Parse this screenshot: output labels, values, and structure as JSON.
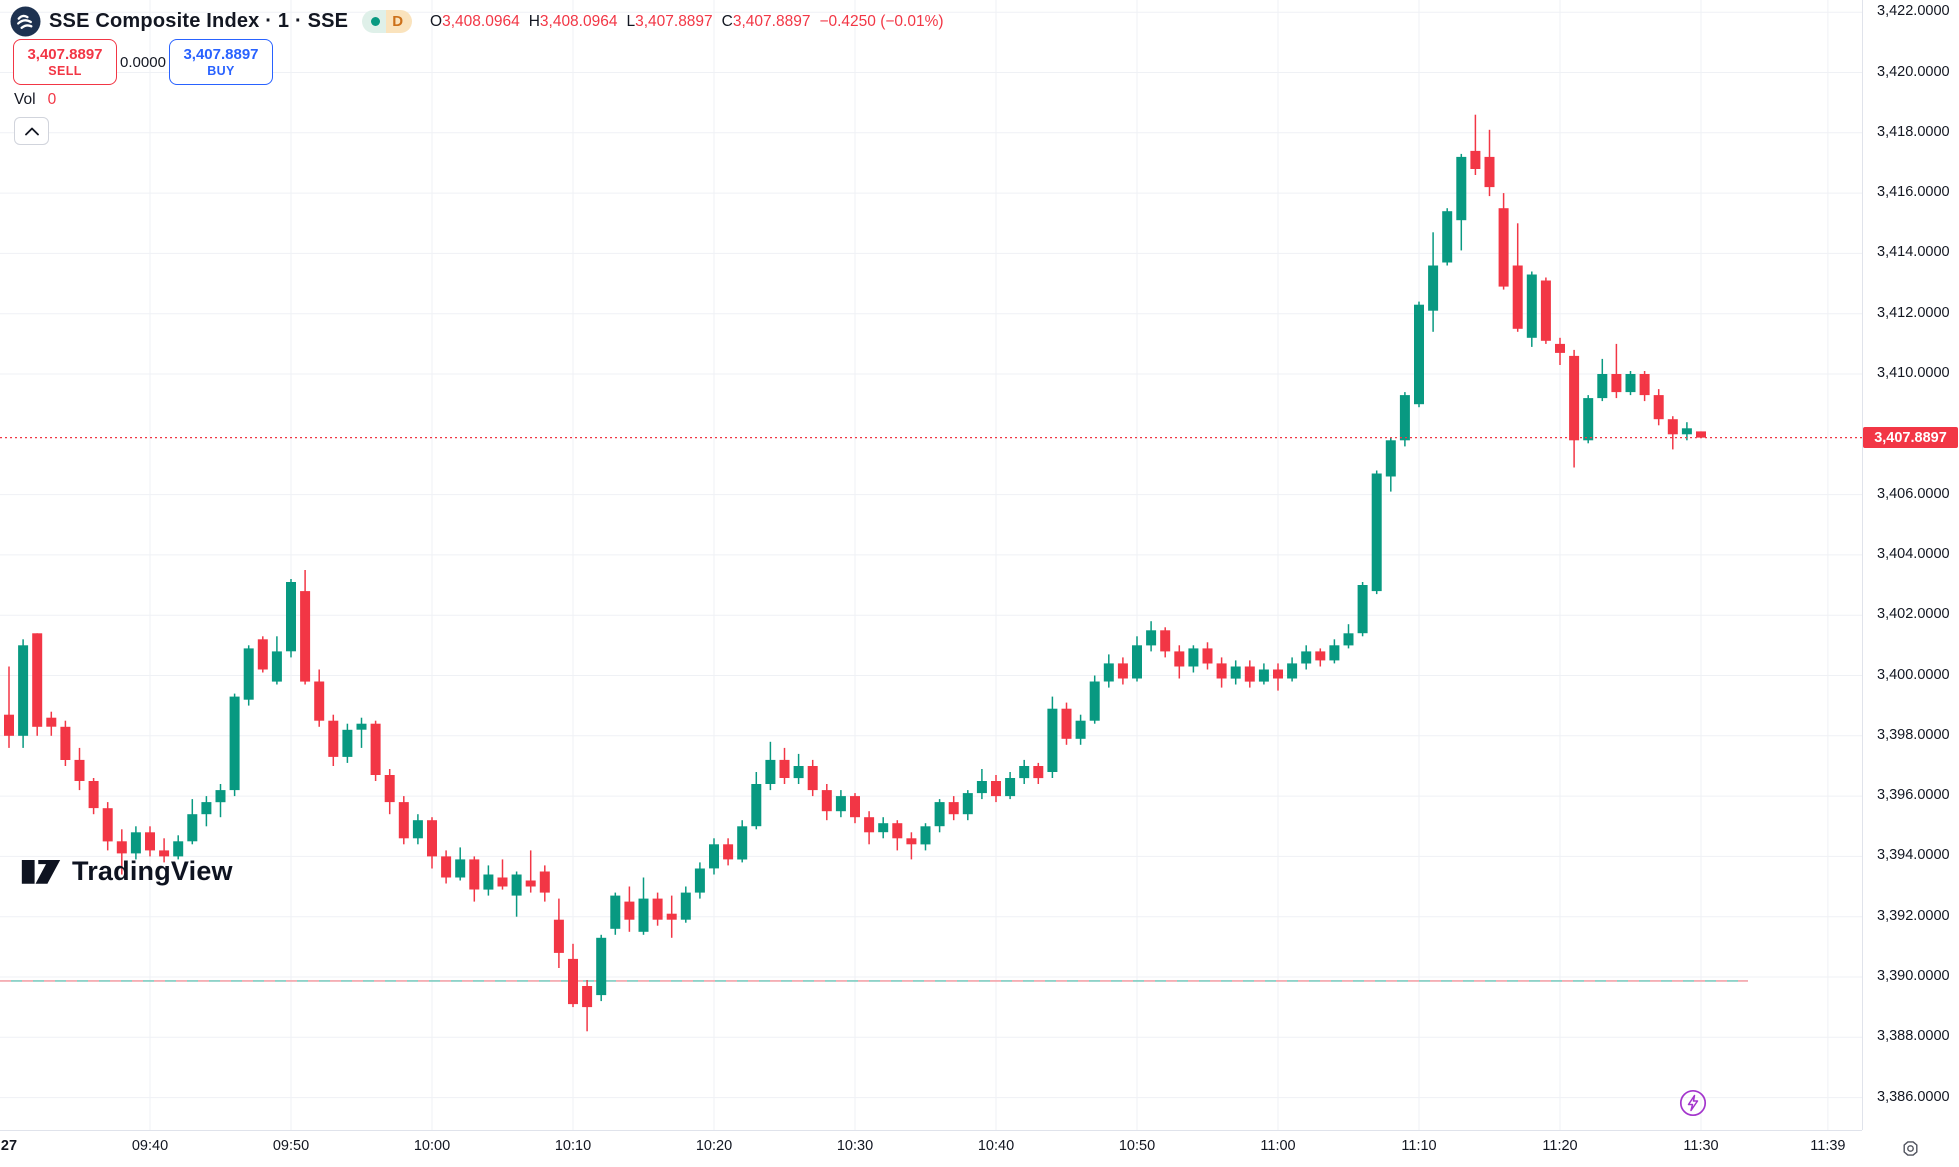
{
  "header": {
    "symbol_title": "SSE Composite Index · 1 · SSE",
    "interval_badge": {
      "letter": "D",
      "dot_color": "#089981",
      "letter_color": "#cc7019"
    },
    "ohlc": [
      {
        "label": "O",
        "value": "3,408.0964"
      },
      {
        "label": "H",
        "value": "3,408.0964"
      },
      {
        "label": "L",
        "value": "3,407.8897"
      },
      {
        "label": "C",
        "value": "3,407.8897"
      }
    ],
    "change": "−0.4250 (−0.01%)"
  },
  "trade_panel": {
    "sell_price": "3,407.8897",
    "sell_label": "SELL",
    "spread": "0.0000",
    "buy_price": "3,407.8897",
    "buy_label": "BUY"
  },
  "volume": {
    "label": "Vol",
    "value": "0"
  },
  "watermark": {
    "text": "TradingView"
  },
  "price_axis": {
    "ticks": [
      {
        "label": "3,422.0000",
        "value": 3422
      },
      {
        "label": "3,420.0000",
        "value": 3420
      },
      {
        "label": "3,418.0000",
        "value": 3418
      },
      {
        "label": "3,416.0000",
        "value": 3416
      },
      {
        "label": "3,414.0000",
        "value": 3414
      },
      {
        "label": "3,412.0000",
        "value": 3412
      },
      {
        "label": "3,410.0000",
        "value": 3410
      },
      {
        "label": "3,406.0000",
        "value": 3406
      },
      {
        "label": "3,404.0000",
        "value": 3404
      },
      {
        "label": "3,402.0000",
        "value": 3402
      },
      {
        "label": "3,400.0000",
        "value": 3400
      },
      {
        "label": "3,398.0000",
        "value": 3398
      },
      {
        "label": "3,396.0000",
        "value": 3396
      },
      {
        "label": "3,394.0000",
        "value": 3394
      },
      {
        "label": "3,392.0000",
        "value": 3392
      },
      {
        "label": "3,390.0000",
        "value": 3390
      },
      {
        "label": "3,388.0000",
        "value": 3388
      },
      {
        "label": "3,386.0000",
        "value": 3386
      }
    ],
    "current": {
      "label": "3,407.8897",
      "value": 3407.8897,
      "bg": "#f23645"
    }
  },
  "time_axis": {
    "ticks": [
      {
        "label": "27",
        "min": 0,
        "bold": true,
        "grid": false
      },
      {
        "label": "09:40",
        "min": 10,
        "bold": false,
        "grid": true
      },
      {
        "label": "09:50",
        "min": 20,
        "bold": false,
        "grid": true
      },
      {
        "label": "10:00",
        "min": 30,
        "bold": false,
        "grid": true
      },
      {
        "label": "10:10",
        "min": 40,
        "bold": false,
        "grid": true
      },
      {
        "label": "10:20",
        "min": 50,
        "bold": false,
        "grid": true
      },
      {
        "label": "10:30",
        "min": 60,
        "bold": false,
        "grid": true
      },
      {
        "label": "10:40",
        "min": 70,
        "bold": false,
        "grid": true
      },
      {
        "label": "10:50",
        "min": 80,
        "bold": false,
        "grid": true
      },
      {
        "label": "11:00",
        "min": 90,
        "bold": false,
        "grid": true
      },
      {
        "label": "11:10",
        "min": 100,
        "bold": false,
        "grid": true
      },
      {
        "label": "11:20",
        "min": 110,
        "bold": false,
        "grid": true
      },
      {
        "label": "11:30",
        "min": 120,
        "bold": false,
        "grid": true
      },
      {
        "label": "11:39",
        "min": 129,
        "bold": false,
        "grid": true
      }
    ]
  },
  "chart_data": {
    "type": "candlestick",
    "title": "SSE Composite Index, 1-minute candles, morning session Jun 27",
    "up_color": "#089981",
    "down_color": "#f23645",
    "grid_color": "#eff1f5",
    "y_range": [
      3385.2,
      3422.6
    ],
    "x_range_minutes": [
      "09:30",
      "11:39"
    ],
    "current_price": 3407.8897,
    "current_price_line_color": "#f23645",
    "reference_line": {
      "value": 3389.87,
      "colors": [
        "#f3a3a9",
        "#7fccc0"
      ],
      "style": "dashed"
    },
    "session_high": 3418.6,
    "session_low": 3388.2,
    "candle_columns": [
      "time",
      "open",
      "high",
      "low",
      "close"
    ],
    "candles": [
      [
        "09:30",
        3398.7,
        3400.3,
        3397.6,
        3398.0
      ],
      [
        "09:31",
        3398.0,
        3401.2,
        3397.6,
        3401.0
      ],
      [
        "09:32",
        3401.4,
        3401.4,
        3398.0,
        3398.3
      ],
      [
        "09:33",
        3398.6,
        3398.8,
        3398.0,
        3398.3
      ],
      [
        "09:34",
        3398.3,
        3398.5,
        3397.0,
        3397.2
      ],
      [
        "09:35",
        3397.2,
        3397.6,
        3396.2,
        3396.5
      ],
      [
        "09:36",
        3396.5,
        3396.6,
        3395.4,
        3395.6
      ],
      [
        "09:37",
        3395.6,
        3395.8,
        3394.2,
        3394.5
      ],
      [
        "09:38",
        3394.5,
        3394.9,
        3393.4,
        3394.1
      ],
      [
        "09:39",
        3394.1,
        3395.0,
        3393.9,
        3394.8
      ],
      [
        "09:40",
        3394.8,
        3395.0,
        3394.0,
        3394.2
      ],
      [
        "09:41",
        3394.2,
        3394.6,
        3393.8,
        3394.0
      ],
      [
        "09:42",
        3394.0,
        3394.7,
        3393.9,
        3394.5
      ],
      [
        "09:43",
        3394.5,
        3395.9,
        3394.4,
        3395.4
      ],
      [
        "09:44",
        3395.4,
        3396.0,
        3395.0,
        3395.8
      ],
      [
        "09:45",
        3395.8,
        3396.4,
        3395.3,
        3396.2
      ],
      [
        "09:46",
        3396.2,
        3399.4,
        3396.0,
        3399.3
      ],
      [
        "09:47",
        3399.2,
        3401.0,
        3399.0,
        3400.9
      ],
      [
        "09:48",
        3401.2,
        3401.3,
        3400.1,
        3400.2
      ],
      [
        "09:49",
        3399.8,
        3401.3,
        3399.7,
        3400.8
      ],
      [
        "09:50",
        3400.8,
        3403.2,
        3400.6,
        3403.1
      ],
      [
        "09:51",
        3402.8,
        3403.5,
        3399.7,
        3399.8
      ],
      [
        "09:52",
        3399.8,
        3400.2,
        3398.3,
        3398.5
      ],
      [
        "09:53",
        3398.5,
        3398.7,
        3397.0,
        3397.3
      ],
      [
        "09:54",
        3397.3,
        3398.4,
        3397.1,
        3398.2
      ],
      [
        "09:55",
        3398.2,
        3398.6,
        3397.6,
        3398.4
      ],
      [
        "09:56",
        3398.4,
        3398.5,
        3396.5,
        3396.7
      ],
      [
        "09:57",
        3396.7,
        3396.9,
        3395.4,
        3395.8
      ],
      [
        "09:58",
        3395.8,
        3396.0,
        3394.4,
        3394.6
      ],
      [
        "09:59",
        3394.6,
        3395.4,
        3394.4,
        3395.2
      ],
      [
        "10:00",
        3395.2,
        3395.3,
        3393.6,
        3394.0
      ],
      [
        "10:01",
        3394.0,
        3394.2,
        3393.1,
        3393.3
      ],
      [
        "10:02",
        3393.3,
        3394.3,
        3393.2,
        3393.9
      ],
      [
        "10:03",
        3393.9,
        3394.0,
        3392.5,
        3392.9
      ],
      [
        "10:04",
        3392.9,
        3393.7,
        3392.7,
        3393.4
      ],
      [
        "10:05",
        3393.3,
        3393.9,
        3392.9,
        3393.0
      ],
      [
        "10:06",
        3392.7,
        3393.5,
        3392.0,
        3393.4
      ],
      [
        "10:07",
        3393.2,
        3394.2,
        3392.8,
        3393.0
      ],
      [
        "10:08",
        3393.5,
        3393.7,
        3392.5,
        3392.8
      ],
      [
        "10:09",
        3391.9,
        3392.6,
        3390.3,
        3390.8
      ],
      [
        "10:10",
        3390.6,
        3391.1,
        3389.0,
        3389.1
      ],
      [
        "10:11",
        3389.7,
        3389.9,
        3388.2,
        3389.0
      ],
      [
        "10:12",
        3389.4,
        3391.4,
        3389.2,
        3391.3
      ],
      [
        "10:13",
        3391.6,
        3392.8,
        3391.4,
        3392.7
      ],
      [
        "10:14",
        3392.5,
        3393.0,
        3391.5,
        3391.9
      ],
      [
        "10:15",
        3391.5,
        3393.3,
        3391.4,
        3392.6
      ],
      [
        "10:16",
        3392.6,
        3392.8,
        3391.7,
        3391.9
      ],
      [
        "10:17",
        3392.1,
        3392.7,
        3391.3,
        3391.9
      ],
      [
        "10:18",
        3391.9,
        3393.0,
        3391.8,
        3392.8
      ],
      [
        "10:19",
        3392.8,
        3393.8,
        3392.6,
        3393.6
      ],
      [
        "10:20",
        3393.6,
        3394.6,
        3393.4,
        3394.4
      ],
      [
        "10:21",
        3394.4,
        3394.6,
        3393.7,
        3393.9
      ],
      [
        "10:22",
        3393.9,
        3395.2,
        3393.8,
        3395.0
      ],
      [
        "10:23",
        3395.0,
        3396.8,
        3394.9,
        3396.4
      ],
      [
        "10:24",
        3396.4,
        3397.8,
        3396.2,
        3397.2
      ],
      [
        "10:25",
        3397.2,
        3397.6,
        3396.4,
        3396.6
      ],
      [
        "10:26",
        3396.6,
        3397.4,
        3396.4,
        3397.0
      ],
      [
        "10:27",
        3397.0,
        3397.2,
        3396.0,
        3396.2
      ],
      [
        "10:28",
        3396.2,
        3396.4,
        3395.2,
        3395.5
      ],
      [
        "10:29",
        3395.5,
        3396.2,
        3395.3,
        3396.0
      ],
      [
        "10:30",
        3396.0,
        3396.1,
        3395.1,
        3395.3
      ],
      [
        "10:31",
        3395.3,
        3395.5,
        3394.4,
        3394.8
      ],
      [
        "10:32",
        3394.8,
        3395.3,
        3394.6,
        3395.1
      ],
      [
        "10:33",
        3395.1,
        3395.2,
        3394.2,
        3394.6
      ],
      [
        "10:34",
        3394.6,
        3394.8,
        3393.9,
        3394.4
      ],
      [
        "10:35",
        3394.4,
        3395.1,
        3394.2,
        3395.0
      ],
      [
        "10:36",
        3395.0,
        3395.9,
        3394.8,
        3395.8
      ],
      [
        "10:37",
        3395.8,
        3396.0,
        3395.2,
        3395.4
      ],
      [
        "10:38",
        3395.4,
        3396.2,
        3395.2,
        3396.1
      ],
      [
        "10:39",
        3396.1,
        3396.9,
        3395.9,
        3396.5
      ],
      [
        "10:40",
        3396.5,
        3396.7,
        3395.8,
        3396.0
      ],
      [
        "10:41",
        3396.0,
        3396.8,
        3395.9,
        3396.6
      ],
      [
        "10:42",
        3396.6,
        3397.2,
        3396.4,
        3397.0
      ],
      [
        "10:43",
        3397.0,
        3397.1,
        3396.4,
        3396.6
      ],
      [
        "10:44",
        3396.8,
        3399.3,
        3396.6,
        3398.9
      ],
      [
        "10:45",
        3398.9,
        3399.1,
        3397.7,
        3397.9
      ],
      [
        "10:46",
        3397.9,
        3398.7,
        3397.7,
        3398.5
      ],
      [
        "10:47",
        3398.5,
        3400.0,
        3398.4,
        3399.8
      ],
      [
        "10:48",
        3399.8,
        3400.7,
        3399.6,
        3400.4
      ],
      [
        "10:49",
        3400.4,
        3400.6,
        3399.7,
        3399.9
      ],
      [
        "10:50",
        3399.9,
        3401.3,
        3399.8,
        3401.0
      ],
      [
        "10:51",
        3401.0,
        3401.8,
        3400.8,
        3401.5
      ],
      [
        "10:52",
        3401.5,
        3401.6,
        3400.6,
        3400.8
      ],
      [
        "10:53",
        3400.8,
        3401.0,
        3399.9,
        3400.3
      ],
      [
        "10:54",
        3400.3,
        3401.0,
        3400.1,
        3400.9
      ],
      [
        "10:55",
        3400.9,
        3401.1,
        3400.2,
        3400.4
      ],
      [
        "10:56",
        3400.4,
        3400.6,
        3399.6,
        3399.9
      ],
      [
        "10:57",
        3399.9,
        3400.5,
        3399.7,
        3400.3
      ],
      [
        "10:58",
        3400.3,
        3400.5,
        3399.6,
        3399.8
      ],
      [
        "10:59",
        3399.8,
        3400.4,
        3399.7,
        3400.2
      ],
      [
        "11:00",
        3400.2,
        3400.4,
        3399.5,
        3399.9
      ],
      [
        "11:01",
        3399.9,
        3400.6,
        3399.8,
        3400.4
      ],
      [
        "11:02",
        3400.4,
        3401.0,
        3400.2,
        3400.8
      ],
      [
        "11:03",
        3400.8,
        3400.9,
        3400.3,
        3400.5
      ],
      [
        "11:04",
        3400.5,
        3401.2,
        3400.4,
        3401.0
      ],
      [
        "11:05",
        3401.0,
        3401.7,
        3400.9,
        3401.4
      ],
      [
        "11:06",
        3401.4,
        3403.1,
        3401.3,
        3403.0
      ],
      [
        "11:07",
        3402.8,
        3406.8,
        3402.7,
        3406.7
      ],
      [
        "11:08",
        3406.6,
        3407.9,
        3406.1,
        3407.8
      ],
      [
        "11:09",
        3407.8,
        3409.4,
        3407.6,
        3409.3
      ],
      [
        "11:10",
        3409.0,
        3412.4,
        3408.9,
        3412.3
      ],
      [
        "11:11",
        3412.1,
        3414.7,
        3411.4,
        3413.6
      ],
      [
        "11:12",
        3413.7,
        3415.5,
        3413.6,
        3415.4
      ],
      [
        "11:13",
        3415.1,
        3417.3,
        3414.1,
        3417.2
      ],
      [
        "11:14",
        3417.4,
        3418.6,
        3416.6,
        3416.8
      ],
      [
        "11:15",
        3417.2,
        3418.1,
        3415.9,
        3416.2
      ],
      [
        "11:16",
        3415.5,
        3416.0,
        3412.8,
        3412.9
      ],
      [
        "11:17",
        3413.6,
        3415.0,
        3411.4,
        3411.5
      ],
      [
        "11:18",
        3411.2,
        3413.4,
        3410.9,
        3413.3
      ],
      [
        "11:19",
        3413.1,
        3413.2,
        3411.0,
        3411.1
      ],
      [
        "11:20",
        3411.0,
        3411.2,
        3410.3,
        3410.7
      ],
      [
        "11:21",
        3410.6,
        3410.8,
        3406.9,
        3407.8
      ],
      [
        "11:22",
        3407.8,
        3409.3,
        3407.7,
        3409.2
      ],
      [
        "11:23",
        3409.2,
        3410.5,
        3409.1,
        3410.0
      ],
      [
        "11:24",
        3410.0,
        3411.0,
        3409.2,
        3409.4
      ],
      [
        "11:25",
        3409.4,
        3410.1,
        3409.3,
        3410.0
      ],
      [
        "11:26",
        3410.0,
        3410.1,
        3409.1,
        3409.3
      ],
      [
        "11:27",
        3409.3,
        3409.5,
        3408.3,
        3408.5
      ],
      [
        "11:28",
        3408.5,
        3408.6,
        3407.5,
        3408.0
      ],
      [
        "11:29",
        3408.0,
        3408.4,
        3407.8,
        3408.2
      ],
      [
        "11:30",
        3408.0964,
        3408.0964,
        3407.8897,
        3407.8897
      ]
    ]
  },
  "icons": {
    "provider_logo_bg": "#1e3250",
    "boost_color": "#a335cc",
    "gear_color": "#50535e"
  }
}
